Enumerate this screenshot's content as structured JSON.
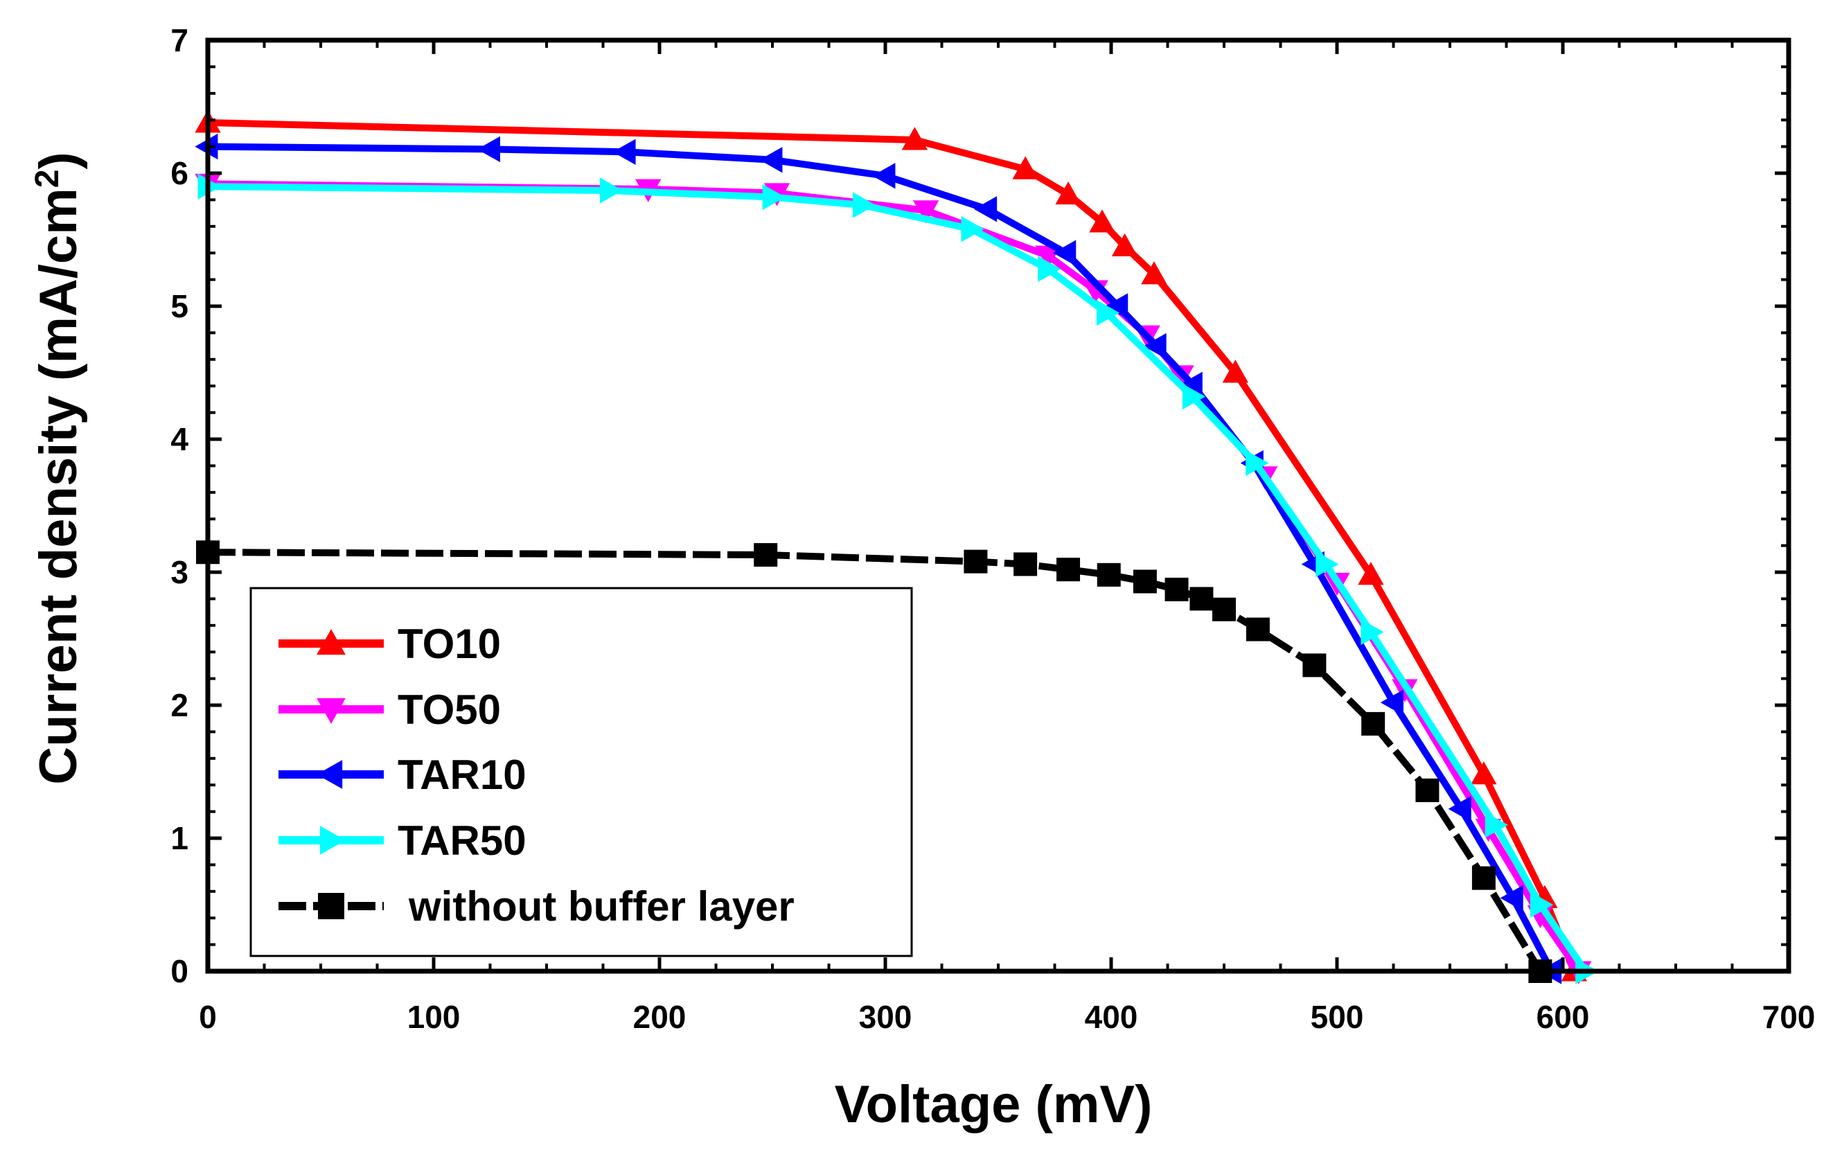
{
  "chart_data": {
    "type": "line",
    "title": "",
    "xlabel": "Voltage (mV)",
    "ylabel_main": "Current density (mA/cm",
    "ylabel_sup": "2",
    "ylabel_close": ")",
    "xlim": [
      0,
      700
    ],
    "ylim": [
      0,
      7
    ],
    "xticks": [
      0,
      100,
      200,
      300,
      400,
      500,
      600,
      700
    ],
    "yticks": [
      0,
      1,
      2,
      3,
      4,
      5,
      6,
      7
    ],
    "grid": false,
    "legend_position": "bottom-left",
    "series": [
      {
        "name": "TO10",
        "color": "#ff0000",
        "marker": "triangle-up",
        "x": [
          0,
          313,
          362,
          381,
          396,
          406,
          419,
          455,
          515,
          565,
          592,
          605
        ],
        "y": [
          6.38,
          6.25,
          6.03,
          5.84,
          5.63,
          5.45,
          5.24,
          4.5,
          2.98,
          1.48,
          0.55,
          0.0
        ]
      },
      {
        "name": "TO50",
        "color": "#ff00ff",
        "marker": "triangle-down",
        "x": [
          0,
          195,
          252,
          318,
          372,
          393,
          416,
          431,
          468,
          500,
          530,
          567,
          590,
          607
        ],
        "y": [
          5.92,
          5.88,
          5.85,
          5.72,
          5.38,
          5.12,
          4.78,
          4.48,
          3.72,
          2.92,
          2.12,
          1.07,
          0.42,
          0.0
        ]
      },
      {
        "name": "TAR10",
        "color": "#0000ff",
        "marker": "triangle-left",
        "x": [
          0,
          125,
          185,
          250,
          300,
          345,
          380,
          403,
          420,
          436,
          463,
          490,
          525,
          555,
          578,
          595
        ],
        "y": [
          6.2,
          6.18,
          6.16,
          6.1,
          5.98,
          5.73,
          5.4,
          5.0,
          4.7,
          4.41,
          3.82,
          3.06,
          2.02,
          1.22,
          0.55,
          0.0
        ]
      },
      {
        "name": "TAR50",
        "color": "#00ffff",
        "marker": "triangle-right",
        "x": [
          0,
          178,
          250,
          290,
          338,
          372,
          398,
          436,
          464,
          495,
          515,
          570,
          590,
          610
        ],
        "y": [
          5.9,
          5.87,
          5.82,
          5.76,
          5.58,
          5.28,
          4.95,
          4.32,
          3.82,
          3.06,
          2.55,
          1.1,
          0.5,
          0.0
        ]
      },
      {
        "name": "without buffer layer",
        "color": "#000000",
        "marker": "square",
        "x": [
          0,
          247,
          340,
          362,
          381,
          399,
          415,
          429,
          440,
          450,
          465,
          490,
          516,
          540,
          565,
          590
        ],
        "y": [
          3.15,
          3.13,
          3.08,
          3.06,
          3.02,
          2.98,
          2.93,
          2.87,
          2.8,
          2.72,
          2.57,
          2.3,
          1.86,
          1.36,
          0.7,
          0.0
        ]
      }
    ]
  }
}
